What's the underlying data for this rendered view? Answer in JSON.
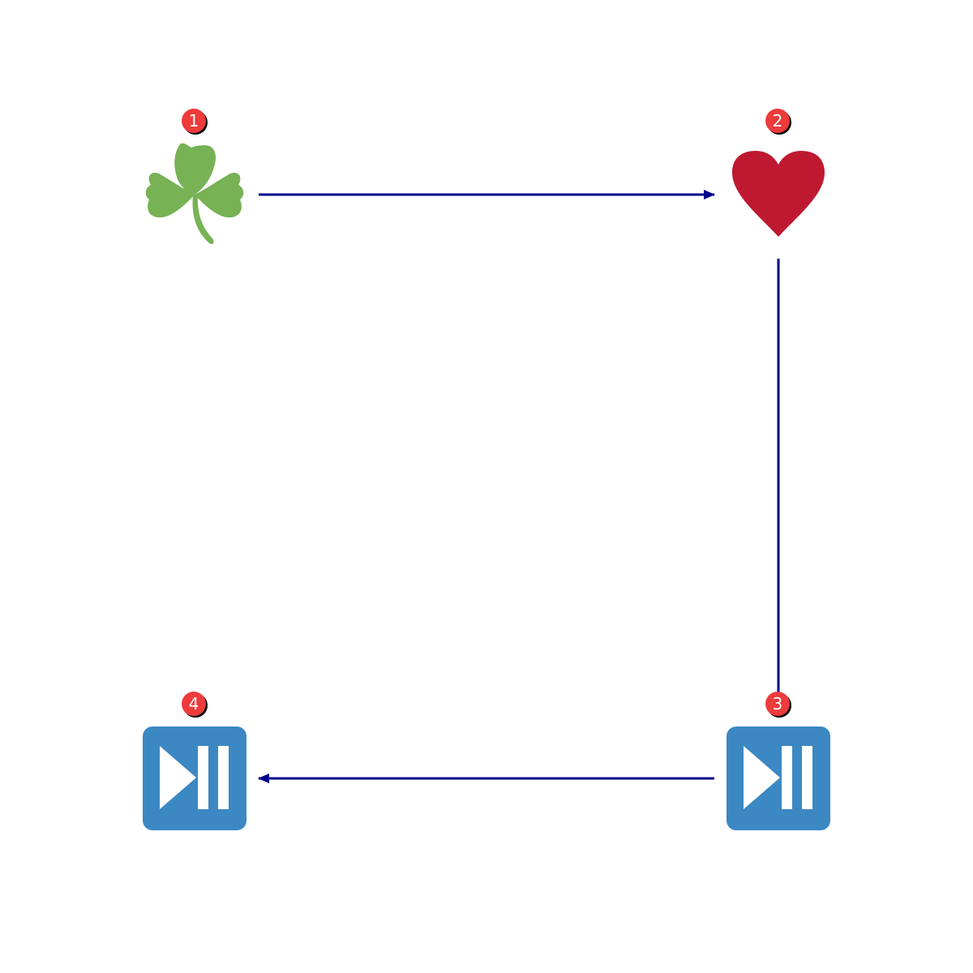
{
  "colors": {
    "background": "#ffffff",
    "connector": "#00008b",
    "badge_fill": "#ee3b3b",
    "badge_text": "#ffffff",
    "shamrock": "#77b255",
    "heart": "#be1931",
    "media_tile": "#3b88c3",
    "media_glyph": "#ffffff"
  },
  "nodes": [
    {
      "id": "node-1",
      "icon": "shamrock-icon",
      "badge": "1"
    },
    {
      "id": "node-2",
      "icon": "heart-icon",
      "badge": "2"
    },
    {
      "id": "node-3",
      "icon": "play-pause-icon",
      "badge": "3"
    },
    {
      "id": "node-4",
      "icon": "play-pause-icon",
      "badge": "4"
    }
  ],
  "edges": [
    {
      "from": "node-1",
      "to": "node-2",
      "arrow": true
    },
    {
      "from": "node-2",
      "to": "node-3",
      "arrow": false
    },
    {
      "from": "node-3",
      "to": "node-4",
      "arrow": true
    }
  ]
}
